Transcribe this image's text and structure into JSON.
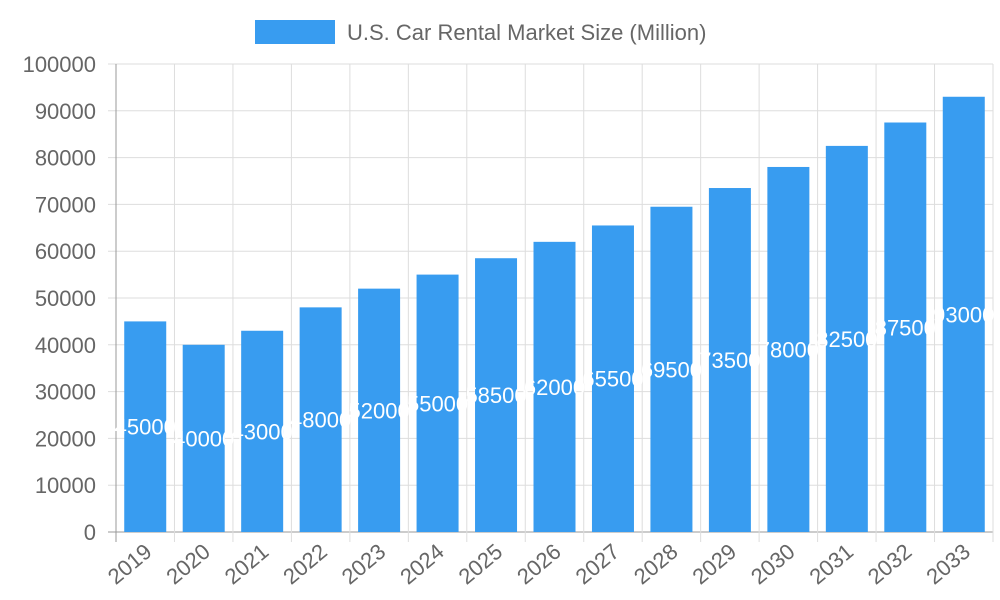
{
  "chart_data": {
    "type": "bar",
    "title": "",
    "legend": [
      "U.S. Car Rental Market Size (Million)"
    ],
    "legend_position": "top",
    "categories": [
      "2019",
      "2020",
      "2021",
      "2022",
      "2023",
      "2024",
      "2025",
      "2026",
      "2027",
      "2028",
      "2029",
      "2030",
      "2031",
      "2032",
      "2033"
    ],
    "series": [
      {
        "name": "U.S. Car Rental Market Size (Million)",
        "values": [
          45000,
          40000,
          43000,
          48000,
          52000,
          55000,
          58500,
          62000,
          65500,
          69500,
          73500,
          78000,
          82500,
          87500,
          93000
        ],
        "color": "#389cf0"
      }
    ],
    "xlabel": "",
    "ylabel": "",
    "ylim": [
      0,
      100000
    ],
    "yticks": [
      0,
      10000,
      20000,
      30000,
      40000,
      50000,
      60000,
      70000,
      80000,
      90000,
      100000
    ],
    "grid": true,
    "data_labels": true
  }
}
